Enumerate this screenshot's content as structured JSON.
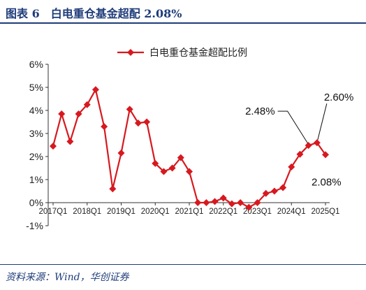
{
  "figure": {
    "title": "图表 6　白电重仓基金超配 2.08%",
    "source": "资料来源：Wind，华创证券"
  },
  "colors": {
    "series": "#d7191f",
    "accent": "#1f3c7a"
  },
  "chart_data": {
    "type": "line",
    "title": "",
    "xlabel": "",
    "ylabel": "",
    "ylim": [
      -1,
      6
    ],
    "y_ticks": [
      "-1%",
      "0%",
      "1%",
      "2%",
      "3%",
      "4%",
      "5%",
      "6%"
    ],
    "x_tick_labels": [
      "2017Q1",
      "2018Q1",
      "2019Q1",
      "2020Q1",
      "2021Q1",
      "2022Q1",
      "2023Q1",
      "2024Q1",
      "2025Q1"
    ],
    "grid": false,
    "legend_position": "top-center",
    "series": [
      {
        "name": "白电重仓基金超配比例",
        "marker": "diamond",
        "points": [
          {
            "period": "2017Q1",
            "value": 2.45
          },
          {
            "period": "2017Q2",
            "value": 3.85
          },
          {
            "period": "2017Q3",
            "value": 2.65
          },
          {
            "period": "2017Q4",
            "value": 3.85
          },
          {
            "period": "2018Q1",
            "value": 4.25
          },
          {
            "period": "2018Q2",
            "value": 4.9
          },
          {
            "period": "2018Q3",
            "value": 3.3
          },
          {
            "period": "2018Q4",
            "value": 0.6
          },
          {
            "period": "2019Q1",
            "value": 2.15
          },
          {
            "period": "2019Q2",
            "value": 4.05
          },
          {
            "period": "2019Q3",
            "value": 3.45
          },
          {
            "period": "2019Q4",
            "value": 3.5
          },
          {
            "period": "2020Q1",
            "value": 1.7
          },
          {
            "period": "2020Q2",
            "value": 1.35
          },
          {
            "period": "2020Q3",
            "value": 1.5
          },
          {
            "period": "2020Q4",
            "value": 1.95
          },
          {
            "period": "2021Q1",
            "value": 1.35
          },
          {
            "period": "2021Q2",
            "value": 0.0
          },
          {
            "period": "2021Q3",
            "value": 0.0
          },
          {
            "period": "2021Q4",
            "value": 0.05
          },
          {
            "period": "2022Q1",
            "value": 0.2
          },
          {
            "period": "2022Q2",
            "value": -0.05
          },
          {
            "period": "2022Q3",
            "value": 0.0
          },
          {
            "period": "2022Q4",
            "value": -0.2
          },
          {
            "period": "2023Q1",
            "value": 0.0
          },
          {
            "period": "2023Q2",
            "value": 0.4
          },
          {
            "period": "2023Q3",
            "value": 0.5
          },
          {
            "period": "2023Q4",
            "value": 0.65
          },
          {
            "period": "2024Q1",
            "value": 1.55
          },
          {
            "period": "2024Q2",
            "value": 2.1
          },
          {
            "period": "2024Q3",
            "value": 2.48
          },
          {
            "period": "2024Q4",
            "value": 2.6
          },
          {
            "period": "2025Q1",
            "value": 2.08
          }
        ]
      }
    ],
    "annotations": [
      {
        "text": "2.48%",
        "period": "2024Q3"
      },
      {
        "text": "2.60%",
        "period": "2024Q4"
      },
      {
        "text": "2.08%",
        "period": "2025Q1"
      }
    ]
  }
}
